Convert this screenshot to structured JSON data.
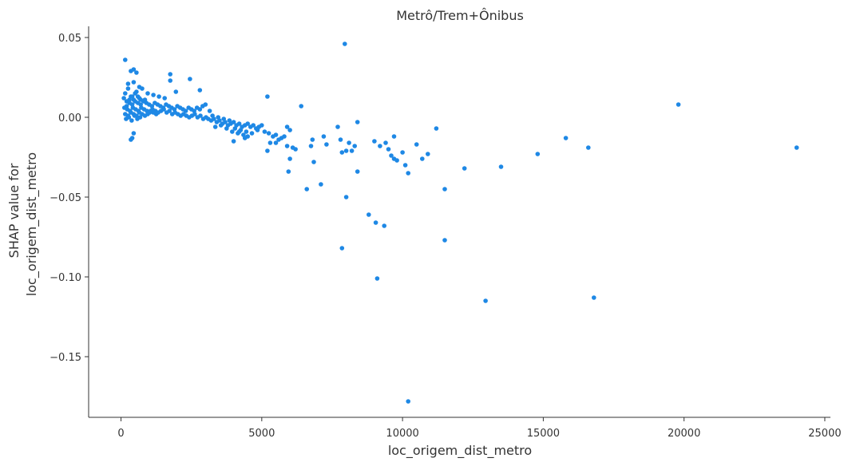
{
  "chart_data": {
    "type": "scatter",
    "title": "Metrô/Trem+Ônibus",
    "xlabel": "loc_origem_dist_metro",
    "ylabel_lines": [
      "SHAP value for",
      "loc_origem_dist_metro"
    ],
    "xlim": [
      -1150,
      25200
    ],
    "ylim": [
      -0.188,
      0.057
    ],
    "x_ticks": [
      0,
      5000,
      10000,
      15000,
      20000,
      25000
    ],
    "x_tick_labels": [
      "0",
      "5000",
      "10000",
      "15000",
      "20000",
      "25000"
    ],
    "y_ticks": [
      0.05,
      0.0,
      -0.05,
      -0.1,
      -0.15
    ],
    "y_tick_labels": [
      "0.05",
      "0.00",
      "−0.05",
      "−0.10",
      "−0.15"
    ],
    "grid": false,
    "legend": "none",
    "point_color": "#1e88e5",
    "series": [
      {
        "points": [
          [
            150,
            0.036
          ],
          [
            350,
            0.029
          ],
          [
            450,
            0.03
          ],
          [
            550,
            0.028
          ],
          [
            1750,
            0.027
          ],
          [
            2450,
            0.024
          ],
          [
            250,
            0.021
          ],
          [
            450,
            0.022
          ],
          [
            650,
            0.019
          ],
          [
            1750,
            0.023
          ],
          [
            2800,
            0.017
          ],
          [
            1950,
            0.016
          ],
          [
            150,
            0.015
          ],
          [
            250,
            0.018
          ],
          [
            350,
            0.013
          ],
          [
            550,
            0.016
          ],
          [
            750,
            0.018
          ],
          [
            950,
            0.015
          ],
          [
            1150,
            0.014
          ],
          [
            1350,
            0.013
          ],
          [
            1550,
            0.012
          ],
          [
            850,
            0.011
          ],
          [
            650,
            0.012
          ],
          [
            450,
            0.011
          ],
          [
            100,
            0.012
          ],
          [
            200,
            0.01
          ],
          [
            300,
            0.009
          ],
          [
            400,
            0.008
          ],
          [
            500,
            0.01
          ],
          [
            600,
            0.009
          ],
          [
            700,
            0.008
          ],
          [
            800,
            0.01
          ],
          [
            900,
            0.009
          ],
          [
            1000,
            0.008
          ],
          [
            1100,
            0.007
          ],
          [
            1200,
            0.009
          ],
          [
            1300,
            0.008
          ],
          [
            1400,
            0.007
          ],
          [
            1500,
            0.006
          ],
          [
            1600,
            0.008
          ],
          [
            1700,
            0.007
          ],
          [
            1800,
            0.006
          ],
          [
            1900,
            0.005
          ],
          [
            2000,
            0.007
          ],
          [
            2100,
            0.006
          ],
          [
            2200,
            0.005
          ],
          [
            2300,
            0.004
          ],
          [
            2400,
            0.006
          ],
          [
            2500,
            0.005
          ],
          [
            2600,
            0.004
          ],
          [
            2700,
            0.006
          ],
          [
            2800,
            0.005
          ],
          [
            2900,
            0.007
          ],
          [
            3000,
            0.008
          ],
          [
            120,
            0.006
          ],
          [
            220,
            0.005
          ],
          [
            320,
            0.004
          ],
          [
            420,
            0.006
          ],
          [
            520,
            0.005
          ],
          [
            620,
            0.004
          ],
          [
            720,
            0.006
          ],
          [
            820,
            0.005
          ],
          [
            920,
            0.004
          ],
          [
            1020,
            0.003
          ],
          [
            1120,
            0.005
          ],
          [
            1220,
            0.004
          ],
          [
            1320,
            0.003
          ],
          [
            1420,
            0.004
          ],
          [
            1520,
            0.005
          ],
          [
            1620,
            0.003
          ],
          [
            1720,
            0.004
          ],
          [
            1820,
            0.002
          ],
          [
            1920,
            0.003
          ],
          [
            2020,
            0.002
          ],
          [
            2120,
            0.001
          ],
          [
            2220,
            0.002
          ],
          [
            2320,
            0.001
          ],
          [
            2420,
            0.0
          ],
          [
            2520,
            0.001
          ],
          [
            2620,
            0.002
          ],
          [
            2720,
            0.0
          ],
          [
            2820,
            0.001
          ],
          [
            2920,
            -0.001
          ],
          [
            3020,
            0.0
          ],
          [
            150,
            0.002
          ],
          [
            250,
            0.001
          ],
          [
            350,
            0.003
          ],
          [
            450,
            0.002
          ],
          [
            550,
            0.001
          ],
          [
            650,
            0.003
          ],
          [
            750,
            0.002
          ],
          [
            850,
            0.001
          ],
          [
            950,
            0.002
          ],
          [
            1050,
            0.004
          ],
          [
            1150,
            0.003
          ],
          [
            1250,
            0.002
          ],
          [
            180,
            -0.001
          ],
          [
            280,
            0.0
          ],
          [
            380,
            -0.002
          ],
          [
            480,
            0.001
          ],
          [
            580,
            -0.001
          ],
          [
            680,
            0.0
          ],
          [
            200,
            0.007
          ],
          [
            300,
            0.011
          ],
          [
            400,
            0.013
          ],
          [
            500,
            0.015
          ],
          [
            600,
            0.013
          ],
          [
            700,
            0.011
          ],
          [
            3100,
            -0.001
          ],
          [
            3200,
            -0.002
          ],
          [
            3300,
            -0.001
          ],
          [
            3400,
            -0.003
          ],
          [
            3500,
            -0.002
          ],
          [
            3600,
            -0.004
          ],
          [
            3700,
            -0.003
          ],
          [
            3800,
            -0.005
          ],
          [
            3900,
            -0.004
          ],
          [
            4000,
            -0.003
          ],
          [
            4100,
            -0.005
          ],
          [
            4200,
            -0.004
          ],
          [
            4300,
            -0.006
          ],
          [
            4400,
            -0.005
          ],
          [
            4500,
            -0.004
          ],
          [
            4600,
            -0.006
          ],
          [
            4700,
            -0.005
          ],
          [
            4800,
            -0.007
          ],
          [
            4900,
            -0.006
          ],
          [
            5000,
            -0.005
          ],
          [
            3250,
            0.001
          ],
          [
            3450,
            0.0
          ],
          [
            3650,
            -0.001
          ],
          [
            3850,
            -0.002
          ],
          [
            4050,
            -0.007
          ],
          [
            4250,
            -0.008
          ],
          [
            4450,
            -0.009
          ],
          [
            4650,
            -0.01
          ],
          [
            4850,
            -0.008
          ],
          [
            3150,
            0.004
          ],
          [
            3350,
            -0.006
          ],
          [
            3550,
            -0.005
          ],
          [
            3750,
            -0.007
          ],
          [
            3950,
            -0.009
          ],
          [
            4150,
            -0.01
          ],
          [
            4350,
            -0.011
          ],
          [
            5100,
            -0.009
          ],
          [
            5250,
            -0.01
          ],
          [
            5400,
            -0.012
          ],
          [
            5500,
            -0.011
          ],
          [
            5700,
            -0.013
          ],
          [
            5800,
            -0.012
          ],
          [
            5900,
            -0.006
          ],
          [
            6000,
            -0.008
          ],
          [
            4000,
            -0.015
          ],
          [
            4500,
            -0.012
          ],
          [
            5200,
            0.013
          ],
          [
            5300,
            -0.016
          ],
          [
            5500,
            -0.016
          ],
          [
            5600,
            -0.014
          ],
          [
            6100,
            -0.019
          ],
          [
            6200,
            -0.02
          ],
          [
            5900,
            -0.018
          ],
          [
            5200,
            -0.021
          ],
          [
            400,
            -0.013
          ],
          [
            350,
            -0.014
          ],
          [
            450,
            -0.01
          ],
          [
            4400,
            -0.013
          ],
          [
            4200,
            -0.009
          ],
          [
            6400,
            0.007
          ],
          [
            6800,
            -0.014
          ],
          [
            6750,
            -0.018
          ],
          [
            7200,
            -0.012
          ],
          [
            7300,
            -0.017
          ],
          [
            7700,
            -0.006
          ],
          [
            7800,
            -0.014
          ],
          [
            7850,
            -0.022
          ],
          [
            8000,
            -0.021
          ],
          [
            8100,
            -0.016
          ],
          [
            8200,
            -0.021
          ],
          [
            8300,
            -0.018
          ],
          [
            8400,
            -0.003
          ],
          [
            6000,
            -0.026
          ],
          [
            6850,
            -0.028
          ],
          [
            5950,
            -0.034
          ],
          [
            8400,
            -0.034
          ],
          [
            6600,
            -0.045
          ],
          [
            7100,
            -0.042
          ],
          [
            8000,
            -0.05
          ],
          [
            9000,
            -0.015
          ],
          [
            9200,
            -0.018
          ],
          [
            9400,
            -0.016
          ],
          [
            9500,
            -0.02
          ],
          [
            9600,
            -0.024
          ],
          [
            9700,
            -0.026
          ],
          [
            9800,
            -0.027
          ],
          [
            9700,
            -0.012
          ],
          [
            10000,
            -0.022
          ],
          [
            10100,
            -0.03
          ],
          [
            10200,
            -0.035
          ],
          [
            10500,
            -0.017
          ],
          [
            10700,
            -0.026
          ],
          [
            10900,
            -0.023
          ],
          [
            11200,
            -0.007
          ],
          [
            11500,
            -0.045
          ],
          [
            12200,
            -0.032
          ],
          [
            13500,
            -0.031
          ],
          [
            14800,
            -0.023
          ],
          [
            15800,
            -0.013
          ],
          [
            16600,
            -0.019
          ],
          [
            19800,
            0.008
          ],
          [
            24000,
            -0.019
          ],
          [
            7950,
            0.046
          ],
          [
            8800,
            -0.061
          ],
          [
            9050,
            -0.066
          ],
          [
            9350,
            -0.068
          ],
          [
            7850,
            -0.082
          ],
          [
            9100,
            -0.101
          ],
          [
            11500,
            -0.077
          ],
          [
            12950,
            -0.115
          ],
          [
            16800,
            -0.113
          ],
          [
            10200,
            -0.178
          ]
        ]
      }
    ]
  }
}
